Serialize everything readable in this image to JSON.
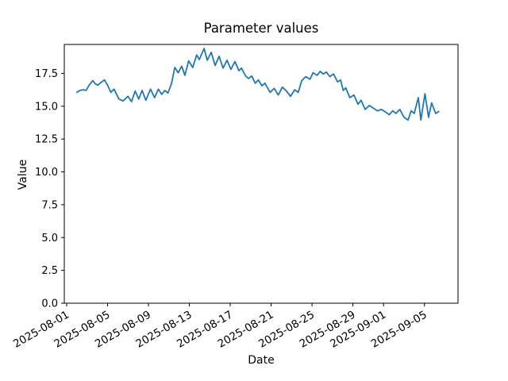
{
  "chart_data": {
    "type": "line",
    "title": "Parameter values",
    "xlabel": "Date",
    "ylabel": "Value",
    "grid": false,
    "legend": null,
    "line_color": "#1f77b4",
    "axis_color": "#000000",
    "background_color": "#ffffff",
    "ylim": [
      0,
      19.7
    ],
    "xlim_days": [
      -0.23,
      38.28
    ],
    "x_unit": "days since 2025-08-01",
    "x_ticks": {
      "days": [
        0,
        4,
        8,
        12,
        16,
        20,
        24,
        28,
        31,
        35
      ],
      "labels": [
        "2025-08-01",
        "2025-08-05",
        "2025-08-09",
        "2025-08-13",
        "2025-08-17",
        "2025-08-21",
        "2025-08-25",
        "2025-08-29",
        "2025-09-01",
        "2025-09-05"
      ]
    },
    "y_ticks": {
      "values": [
        0,
        2.5,
        5,
        7.5,
        10,
        12.5,
        15,
        17.5
      ],
      "labels": [
        "0.0",
        "2.5",
        "5.0",
        "7.5",
        "10.0",
        "12.5",
        "15.0",
        "17.5"
      ]
    },
    "x": [
      1.0,
      1.3,
      1.6,
      1.9,
      2.2,
      2.55,
      2.8,
      3.05,
      3.35,
      3.7,
      4.0,
      4.33,
      4.64,
      5.11,
      5.5,
      6.0,
      6.35,
      6.7,
      7.05,
      7.38,
      7.74,
      8.2,
      8.6,
      8.98,
      9.3,
      9.6,
      9.9,
      10.25,
      10.58,
      10.91,
      11.25,
      11.56,
      11.94,
      12.33,
      12.72,
      12.98,
      13.44,
      13.75,
      14.14,
      14.53,
      14.91,
      15.3,
      15.69,
      16.07,
      16.46,
      16.85,
      17.1,
      17.5,
      17.8,
      18.1,
      18.45,
      18.75,
      19.1,
      19.4,
      19.9,
      20.3,
      20.7,
      21.1,
      21.5,
      21.9,
      22.3,
      22.65,
      23.0,
      23.4,
      23.8,
      24.1,
      24.5,
      24.8,
      25.1,
      25.4,
      25.75,
      26.1,
      26.5,
      26.8,
      27.05,
      27.3,
      27.7,
      28.1,
      28.5,
      28.8,
      29.2,
      29.6,
      30.0,
      30.4,
      30.8,
      31.2,
      31.55,
      31.9,
      32.2,
      32.6,
      33.0,
      33.4,
      33.7,
      34.0,
      34.4,
      34.65,
      35.05,
      35.4,
      35.7,
      36.1,
      36.4
    ],
    "y": [
      16.05,
      16.2,
      16.25,
      16.2,
      16.6,
      16.95,
      16.7,
      16.6,
      16.8,
      17.0,
      16.6,
      16.05,
      16.3,
      15.55,
      15.4,
      15.75,
      15.35,
      16.15,
      15.55,
      16.2,
      15.45,
      16.3,
      15.65,
      16.3,
      15.9,
      16.2,
      16.0,
      16.7,
      17.95,
      17.55,
      18.05,
      17.35,
      18.45,
      17.95,
      18.9,
      18.55,
      19.4,
      18.5,
      19.1,
      18.1,
      18.8,
      17.9,
      18.5,
      17.8,
      18.4,
      17.7,
      17.9,
      17.3,
      17.1,
      17.3,
      16.75,
      17.0,
      16.55,
      16.75,
      16.05,
      16.35,
      15.85,
      16.45,
      16.15,
      15.75,
      16.25,
      16.05,
      16.95,
      17.25,
      17.05,
      17.55,
      17.35,
      17.65,
      17.45,
      17.6,
      17.25,
      17.45,
      16.85,
      17.0,
      16.2,
      16.4,
      15.65,
      15.85,
      15.15,
      15.45,
      14.75,
      15.05,
      14.85,
      14.65,
      14.75,
      14.55,
      14.35,
      14.65,
      14.45,
      14.75,
      14.15,
      13.95,
      14.65,
      14.45,
      15.65,
      13.95,
      15.95,
      14.15,
      15.25,
      14.45,
      14.6
    ]
  }
}
